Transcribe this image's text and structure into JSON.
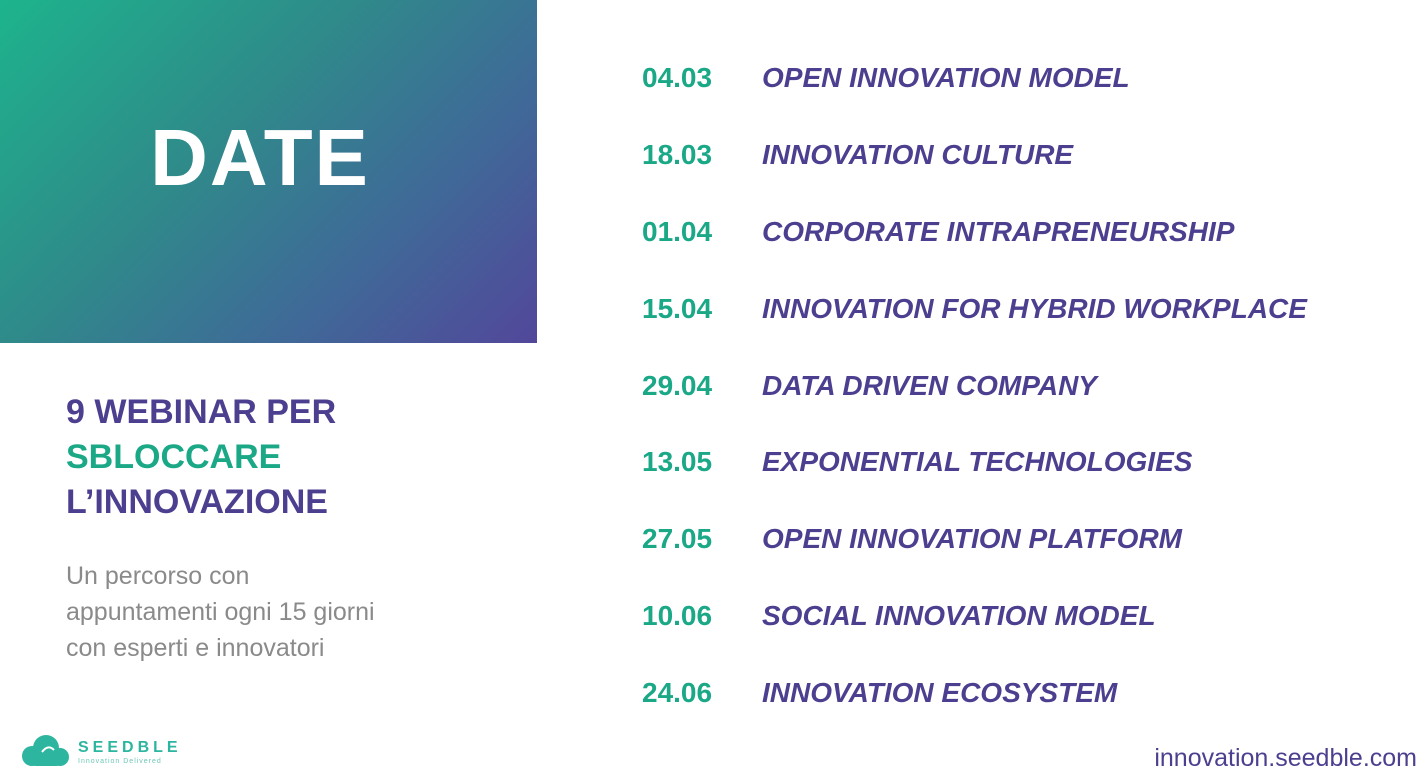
{
  "hero": {
    "title": "DATE"
  },
  "headline": {
    "line1": "9 WEBINAR PER",
    "line2": "SBLOCCARE",
    "line3": "L’INNOVAZIONE"
  },
  "description": {
    "line1": "Un percorso con",
    "line2": "appuntamenti ogni 15 giorni",
    "line3": "con esperti e innovatori"
  },
  "schedule": [
    {
      "date": "04.03",
      "topic": "OPEN INNOVATION MODEL"
    },
    {
      "date": "18.03",
      "topic": "INNOVATION CULTURE"
    },
    {
      "date": "01.04",
      "topic": "CORPORATE INTRAPRENEURSHIP"
    },
    {
      "date": "15.04",
      "topic": "INNOVATION FOR HYBRID WORKPLACE"
    },
    {
      "date": "29.04",
      "topic": "DATA DRIVEN COMPANY"
    },
    {
      "date": "13.05",
      "topic": "EXPONENTIAL TECHNOLOGIES"
    },
    {
      "date": "27.05",
      "topic": "OPEN INNOVATION PLATFORM"
    },
    {
      "date": "10.06",
      "topic": "SOCIAL INNOVATION MODEL"
    },
    {
      "date": "24.06",
      "topic": "INNOVATION ECOSYSTEM"
    }
  ],
  "brand": {
    "name": "SEEDBLE",
    "tagline": "Innovation Delivered",
    "logo_icon": "cloud-logo-icon",
    "website": "innovation.seedble.com"
  },
  "colors": {
    "purple": "#4d3f8f",
    "green": "#1aa886",
    "gradient_start": "#1db48c",
    "gradient_end": "#52479a"
  }
}
